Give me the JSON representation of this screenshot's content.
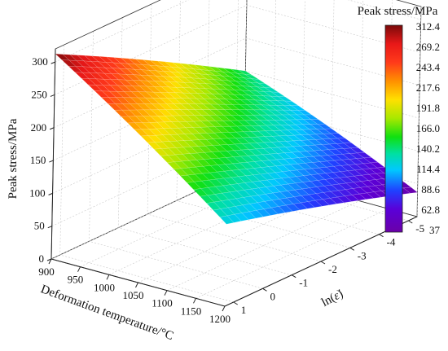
{
  "chart_data": {
    "type": "surface",
    "x": {
      "label": "Deformation temperature/°C",
      "ticks": [
        900,
        950,
        1000,
        1050,
        1100,
        1150,
        1200
      ],
      "range": [
        900,
        1200
      ]
    },
    "y": {
      "label": "ln(ε̇)",
      "ticks": [
        -5,
        -4,
        -3,
        -2,
        -1,
        0,
        1
      ],
      "range": [
        -5.3,
        1.3
      ]
    },
    "z": {
      "label": "Peak stress/MPa",
      "ticks": [
        0,
        50,
        100,
        150,
        200,
        250,
        300
      ],
      "range": [
        0,
        320
      ]
    },
    "surface_corners": [
      {
        "x": 900,
        "y": 1.3,
        "z": 312.4
      },
      {
        "x": 900,
        "y": -5.3,
        "z": 150
      },
      {
        "x": 1200,
        "y": -5.3,
        "z": 37
      },
      {
        "x": 1200,
        "y": 1.3,
        "z": 125
      }
    ],
    "colorbar": {
      "title": "Peak stress/MPa",
      "labels": [
        "312.4",
        "269.2",
        "243.4",
        "217.6",
        "191.8",
        "166.0",
        "140.2",
        "114.4",
        "88.6",
        "62.8",
        "37"
      ],
      "min": 37,
      "max": 312.4
    },
    "grid": true
  }
}
